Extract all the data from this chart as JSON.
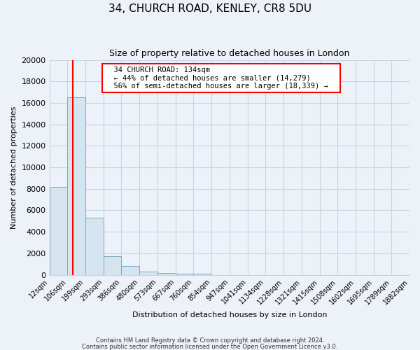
{
  "title": "34, CHURCH ROAD, KENLEY, CR8 5DU",
  "subtitle": "Size of property relative to detached houses in London",
  "xlabel": "Distribution of detached houses by size in London",
  "ylabel": "Number of detached properties",
  "bar_color": "#d6e4f0",
  "bar_edge_color": "#7aaac8",
  "red_line_x": 134,
  "annotation_title": "34 CHURCH ROAD: 134sqm",
  "annotation_line1": "← 44% of detached houses are smaller (14,279)",
  "annotation_line2": "56% of semi-detached houses are larger (18,339) →",
  "bins": [
    12,
    106,
    199,
    293,
    386,
    480,
    573,
    667,
    760,
    854,
    947,
    1041,
    1134,
    1228,
    1321,
    1415,
    1508,
    1602,
    1695,
    1789,
    1882
  ],
  "counts": [
    8200,
    16500,
    5300,
    1750,
    800,
    300,
    150,
    100,
    70,
    0,
    0,
    0,
    0,
    0,
    0,
    0,
    0,
    0,
    0,
    0
  ],
  "ylim": [
    0,
    20000
  ],
  "yticks": [
    0,
    2000,
    4000,
    6000,
    8000,
    10000,
    12000,
    14000,
    16000,
    18000,
    20000
  ],
  "footer1": "Contains HM Land Registry data © Crown copyright and database right 2024.",
  "footer2": "Contains public sector information licensed under the Open Government Licence v3.0.",
  "background_color": "#edf2f9",
  "plot_bg_color": "#edf2f9",
  "grid_color": "#c8d4e4"
}
